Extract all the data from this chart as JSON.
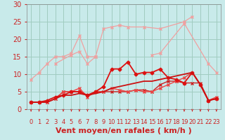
{
  "title": "",
  "xlabel": "Vent moyen/en rafales ( km/h )",
  "xlim": [
    -0.5,
    23.5
  ],
  "ylim": [
    0,
    30
  ],
  "yticks": [
    0,
    5,
    10,
    15,
    20,
    25,
    30
  ],
  "xticks": [
    0,
    1,
    2,
    3,
    4,
    5,
    6,
    7,
    8,
    9,
    10,
    11,
    12,
    13,
    14,
    15,
    16,
    17,
    18,
    19,
    20,
    21,
    22,
    23
  ],
  "bg_color": "#c8eaea",
  "grid_color": "#a0ccc0",
  "series": [
    {
      "x": [
        0,
        1,
        2,
        3,
        4,
        5,
        6,
        7,
        8
      ],
      "y": [
        8.5,
        10.5,
        13,
        15,
        15,
        16,
        21,
        15,
        15
      ],
      "color": "#f0a0a0",
      "lw": 0.9,
      "marker": "x",
      "ms": 3
    },
    {
      "x": [
        3,
        5,
        6,
        7,
        8,
        9,
        10,
        11,
        12,
        14,
        16,
        19,
        20
      ],
      "y": [
        13,
        15.5,
        16.5,
        13,
        15,
        23,
        23.5,
        24,
        23.5,
        23.5,
        23,
        25,
        26.5
      ],
      "color": "#f0a0a0",
      "lw": 0.9,
      "marker": "x",
      "ms": 3
    },
    {
      "x": [
        15,
        16,
        19,
        22,
        23
      ],
      "y": [
        15.5,
        16,
        24.5,
        13,
        10.5
      ],
      "color": "#f0a0a0",
      "lw": 0.9,
      "marker": "x",
      "ms": 3
    },
    {
      "x": [
        0,
        1,
        2,
        3,
        4,
        5,
        6,
        7,
        8,
        9,
        10,
        11,
        12,
        13,
        14,
        15,
        16,
        17,
        18,
        19,
        20,
        21,
        22,
        23
      ],
      "y": [
        2,
        2,
        2,
        3,
        5,
        5,
        5,
        4,
        5,
        5,
        5,
        5,
        5,
        5.5,
        5.5,
        5,
        7,
        8,
        8,
        7.5,
        7.5,
        7.5,
        2.5,
        3
      ],
      "color": "#cc2222",
      "lw": 1.0,
      "marker": "x",
      "ms": 3
    },
    {
      "x": [
        0,
        1,
        2,
        3,
        4,
        5,
        6,
        7,
        8,
        9,
        10,
        11,
        12,
        13,
        14,
        15,
        16,
        17,
        18,
        19,
        20,
        21,
        22,
        23
      ],
      "y": [
        2,
        2,
        2,
        3,
        5,
        5,
        6,
        3.5,
        5,
        5,
        6,
        5.5,
        5,
        5.5,
        5,
        5,
        6,
        7,
        8,
        9,
        10.5,
        7,
        2.5,
        3.5
      ],
      "color": "#ee4444",
      "lw": 1.0,
      "marker": "x",
      "ms": 3
    },
    {
      "x": [
        0,
        1,
        2,
        3,
        4,
        5,
        6,
        7,
        8,
        9,
        10,
        11,
        12,
        13,
        14,
        15,
        16,
        17,
        18,
        19,
        20,
        21,
        22,
        23
      ],
      "y": [
        2,
        2,
        2.5,
        3.5,
        4,
        5,
        5,
        4,
        5,
        6.5,
        11.5,
        11.5,
        13.5,
        10,
        10.5,
        10.5,
        11.5,
        9,
        8.5,
        7.5,
        10.5,
        7,
        2.5,
        3
      ],
      "color": "#dd1111",
      "lw": 1.3,
      "marker": "D",
      "ms": 2.5
    },
    {
      "x": [
        0,
        1,
        2,
        3,
        4,
        5,
        6,
        7,
        8,
        9,
        10,
        11,
        12,
        13,
        14,
        15,
        16,
        17,
        18,
        19,
        20,
        21,
        22,
        23
      ],
      "y": [
        2,
        2,
        2,
        3,
        4,
        4,
        4.5,
        4,
        4.5,
        5,
        6,
        6.5,
        7,
        7.5,
        8,
        8,
        8.5,
        9,
        9.5,
        10,
        10.5,
        7,
        2.5,
        3
      ],
      "color": "#cc1111",
      "lw": 1.3,
      "marker": null,
      "ms": 0
    }
  ],
  "arrow_color": "#cc2222",
  "xlabel_color": "#cc2222",
  "xlabel_fontsize": 8,
  "tick_fontsize": 6,
  "ytick_fontsize": 7,
  "ytick_color": "#cc2222",
  "tick_color": "#cc2222"
}
